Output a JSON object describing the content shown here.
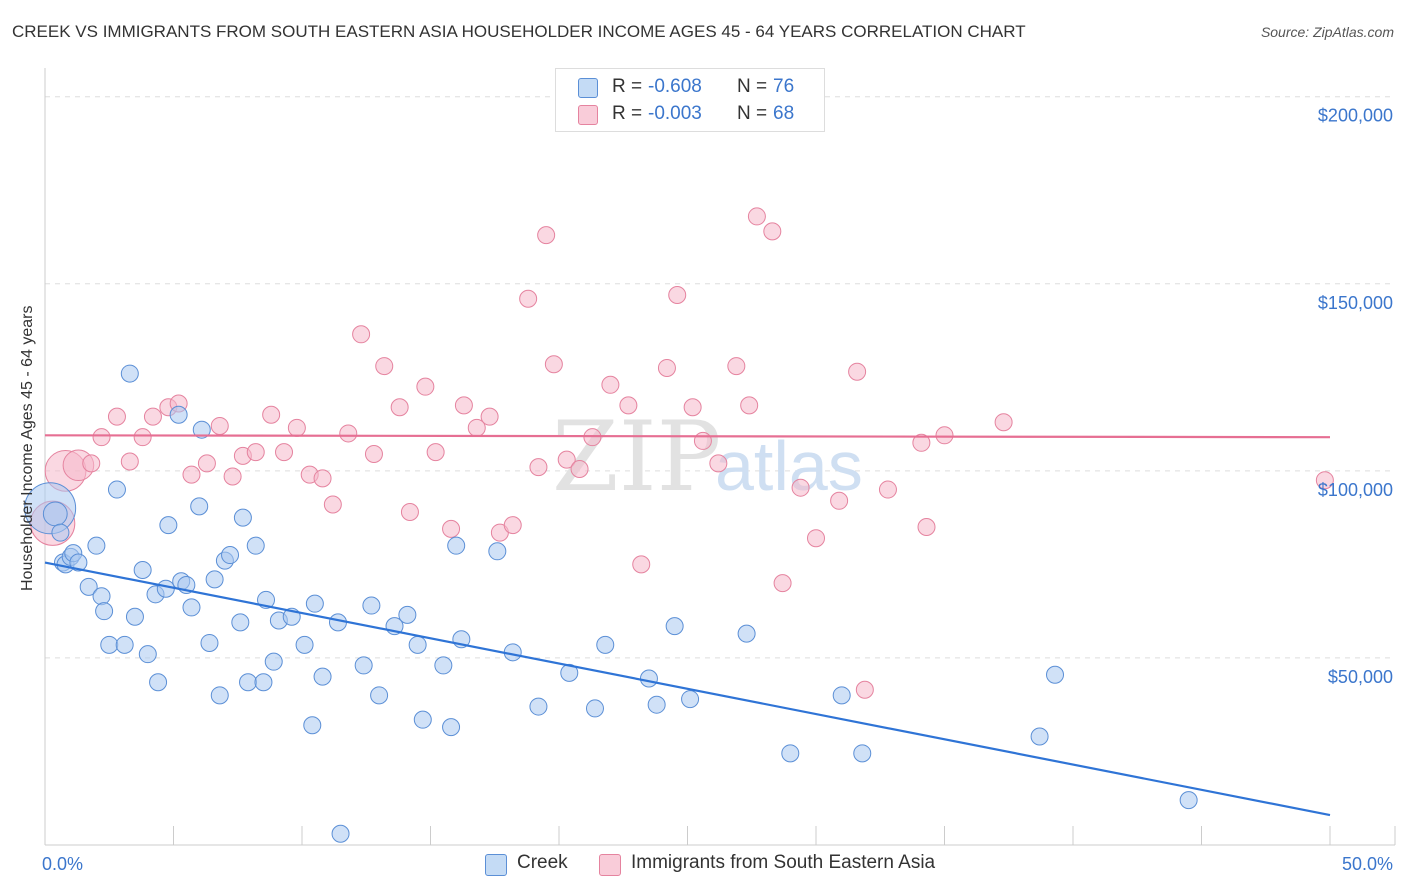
{
  "title": "CREEK VS IMMIGRANTS FROM SOUTH EASTERN ASIA HOUSEHOLDER INCOME AGES 45 - 64 YEARS CORRELATION CHART",
  "source": "Source: ZipAtlas.com",
  "watermark": {
    "zip": "ZIP",
    "atlas": "atlas"
  },
  "legend": {
    "rows": [
      {
        "r_label": "R =",
        "r_value": "-0.608",
        "n_label": "N =",
        "n_value": "76"
      },
      {
        "r_label": "R =",
        "r_value": "-0.003",
        "n_label": "N =",
        "n_value": "68"
      }
    ]
  },
  "bottom_legend": {
    "creek": "Creek",
    "immigrants": "Immigrants from South Eastern Asia"
  },
  "colors": {
    "creek_fill": "#a9c9f0",
    "creek_stroke": "#5b8fd6",
    "creek_line": "#2f74d6",
    "imm_fill": "#f6b8cb",
    "imm_stroke": "#e5839f",
    "imm_line": "#e66f93",
    "axis_text": "#3b76cc",
    "grid": "#dddddd"
  },
  "chart_data": {
    "type": "scatter",
    "title": "CREEK VS IMMIGRANTS FROM SOUTH EASTERN ASIA HOUSEHOLDER INCOME AGES 45 - 64 YEARS CORRELATION CHART",
    "xlabel": "",
    "ylabel": "Householder Income Ages 45 - 64 years",
    "xlim": [
      0,
      50
    ],
    "ylim": [
      0,
      205000
    ],
    "x_tick_labels": [
      "0.0%",
      "50.0%"
    ],
    "y_ticks": [
      50000,
      100000,
      150000,
      200000
    ],
    "y_tick_labels": [
      "$50,000",
      "$100,000",
      "$150,000",
      "$200,000"
    ],
    "series": [
      {
        "name": "Creek",
        "r": -0.608,
        "n": 76,
        "trend": {
          "x": [
            0,
            50
          ],
          "y": [
            75500,
            8000
          ]
        },
        "points": [
          [
            0.2,
            90000,
            3.0
          ],
          [
            0.4,
            88500,
            1.4
          ],
          [
            0.6,
            83500,
            1
          ],
          [
            0.7,
            75500,
            1
          ],
          [
            0.8,
            75000,
            1
          ],
          [
            1.0,
            77000,
            1
          ],
          [
            1.1,
            78000,
            1
          ],
          [
            1.3,
            75500,
            1
          ],
          [
            1.7,
            69000,
            1
          ],
          [
            2.0,
            80000,
            1
          ],
          [
            2.2,
            66500,
            1
          ],
          [
            2.3,
            62500,
            1
          ],
          [
            2.5,
            53500,
            1
          ],
          [
            2.8,
            95000,
            1
          ],
          [
            3.1,
            53500,
            1
          ],
          [
            3.3,
            126000,
            1
          ],
          [
            3.5,
            61000,
            1
          ],
          [
            3.8,
            73500,
            1
          ],
          [
            4.0,
            51000,
            1
          ],
          [
            4.3,
            67000,
            1
          ],
          [
            4.4,
            43500,
            1
          ],
          [
            4.7,
            68500,
            1
          ],
          [
            4.8,
            85500,
            1
          ],
          [
            5.2,
            115000,
            1
          ],
          [
            5.3,
            70500,
            1
          ],
          [
            5.5,
            69500,
            1
          ],
          [
            5.7,
            63500,
            1
          ],
          [
            6.0,
            90500,
            1
          ],
          [
            6.1,
            111000,
            1
          ],
          [
            6.4,
            54000,
            1
          ],
          [
            6.6,
            71000,
            1
          ],
          [
            6.8,
            40000,
            1
          ],
          [
            7.0,
            76000,
            1
          ],
          [
            7.2,
            77500,
            1
          ],
          [
            7.6,
            59500,
            1
          ],
          [
            7.7,
            87500,
            1
          ],
          [
            7.9,
            43500,
            1
          ],
          [
            8.2,
            80000,
            1
          ],
          [
            8.5,
            43500,
            1
          ],
          [
            8.6,
            65500,
            1
          ],
          [
            8.9,
            49000,
            1
          ],
          [
            9.1,
            60000,
            1
          ],
          [
            9.6,
            61000,
            1
          ],
          [
            10.1,
            53500,
            1
          ],
          [
            10.4,
            32000,
            1
          ],
          [
            10.5,
            64500,
            1
          ],
          [
            10.8,
            45000,
            1
          ],
          [
            11.4,
            59500,
            1
          ],
          [
            11.5,
            3000,
            1
          ],
          [
            12.4,
            48000,
            1
          ],
          [
            12.7,
            64000,
            1
          ],
          [
            13.0,
            40000,
            1
          ],
          [
            13.6,
            58500,
            1
          ],
          [
            14.1,
            61500,
            1
          ],
          [
            14.5,
            53500,
            1
          ],
          [
            14.7,
            33500,
            1
          ],
          [
            15.5,
            48000,
            1
          ],
          [
            15.8,
            31500,
            1
          ],
          [
            16.0,
            80000,
            1
          ],
          [
            16.2,
            55000,
            1
          ],
          [
            17.6,
            78500,
            1
          ],
          [
            18.2,
            51500,
            1
          ],
          [
            19.2,
            37000,
            1
          ],
          [
            20.4,
            46000,
            1
          ],
          [
            21.4,
            36500,
            1
          ],
          [
            21.8,
            53500,
            1
          ],
          [
            23.5,
            44500,
            1
          ],
          [
            23.8,
            37500,
            1
          ],
          [
            24.5,
            58500,
            1
          ],
          [
            25.1,
            39000,
            1
          ],
          [
            27.3,
            56500,
            1
          ],
          [
            29.0,
            24500,
            1
          ],
          [
            31.0,
            40000,
            1
          ],
          [
            31.8,
            24500,
            1
          ],
          [
            38.7,
            29000,
            1
          ],
          [
            39.3,
            45500,
            1
          ],
          [
            44.5,
            12000,
            1
          ]
        ]
      },
      {
        "name": "Immigrants from South Eastern Asia",
        "r": -0.003,
        "n": 68,
        "trend": {
          "x": [
            0,
            50
          ],
          "y": [
            109500,
            109000
          ]
        },
        "points": [
          [
            0.3,
            86000,
            2.6
          ],
          [
            0.8,
            100000,
            2.4
          ],
          [
            1.3,
            101500,
            1.8
          ],
          [
            1.8,
            102000,
            1
          ],
          [
            2.2,
            109000,
            1
          ],
          [
            2.8,
            114500,
            1
          ],
          [
            3.3,
            102500,
            1
          ],
          [
            3.8,
            109000,
            1
          ],
          [
            4.2,
            114500,
            1
          ],
          [
            4.8,
            117000,
            1
          ],
          [
            5.2,
            118000,
            1
          ],
          [
            5.7,
            99000,
            1
          ],
          [
            6.3,
            102000,
            1
          ],
          [
            6.8,
            112000,
            1
          ],
          [
            7.3,
            98500,
            1
          ],
          [
            7.7,
            104000,
            1
          ],
          [
            8.2,
            105000,
            1
          ],
          [
            8.8,
            115000,
            1
          ],
          [
            9.3,
            105000,
            1
          ],
          [
            9.8,
            111500,
            1
          ],
          [
            10.3,
            99000,
            1
          ],
          [
            10.8,
            98000,
            1
          ],
          [
            11.2,
            91000,
            1
          ],
          [
            11.8,
            110000,
            1
          ],
          [
            12.3,
            136500,
            1
          ],
          [
            12.8,
            104500,
            1
          ],
          [
            13.2,
            128000,
            1
          ],
          [
            13.8,
            117000,
            1
          ],
          [
            14.2,
            89000,
            1
          ],
          [
            14.8,
            122500,
            1
          ],
          [
            15.2,
            105000,
            1
          ],
          [
            15.8,
            84500,
            1
          ],
          [
            16.3,
            117500,
            1
          ],
          [
            16.8,
            111500,
            1
          ],
          [
            17.3,
            114500,
            1
          ],
          [
            17.7,
            83500,
            1
          ],
          [
            18.2,
            85500,
            1
          ],
          [
            18.8,
            146000,
            1
          ],
          [
            19.2,
            101000,
            1
          ],
          [
            19.5,
            163000,
            1
          ],
          [
            19.8,
            128500,
            1
          ],
          [
            20.3,
            103000,
            1
          ],
          [
            20.8,
            100500,
            1
          ],
          [
            21.3,
            109000,
            1
          ],
          [
            22.0,
            123000,
            1
          ],
          [
            22.7,
            117500,
            1
          ],
          [
            23.2,
            75000,
            1
          ],
          [
            24.2,
            127500,
            1
          ],
          [
            24.6,
            147000,
            1
          ],
          [
            25.2,
            117000,
            1
          ],
          [
            25.6,
            108000,
            1
          ],
          [
            26.2,
            102000,
            1
          ],
          [
            26.9,
            128000,
            1
          ],
          [
            27.4,
            117500,
            1
          ],
          [
            27.7,
            168000,
            1
          ],
          [
            28.3,
            164000,
            1
          ],
          [
            28.7,
            70000,
            1
          ],
          [
            29.4,
            95500,
            1
          ],
          [
            30.0,
            82000,
            1
          ],
          [
            30.9,
            92000,
            1
          ],
          [
            31.6,
            126500,
            1
          ],
          [
            31.9,
            41500,
            1
          ],
          [
            32.8,
            95000,
            1
          ],
          [
            34.1,
            107500,
            1
          ],
          [
            34.3,
            85000,
            1
          ],
          [
            35.0,
            109500,
            1
          ],
          [
            37.3,
            113000,
            1
          ],
          [
            49.8,
            97500,
            1
          ]
        ]
      }
    ]
  }
}
